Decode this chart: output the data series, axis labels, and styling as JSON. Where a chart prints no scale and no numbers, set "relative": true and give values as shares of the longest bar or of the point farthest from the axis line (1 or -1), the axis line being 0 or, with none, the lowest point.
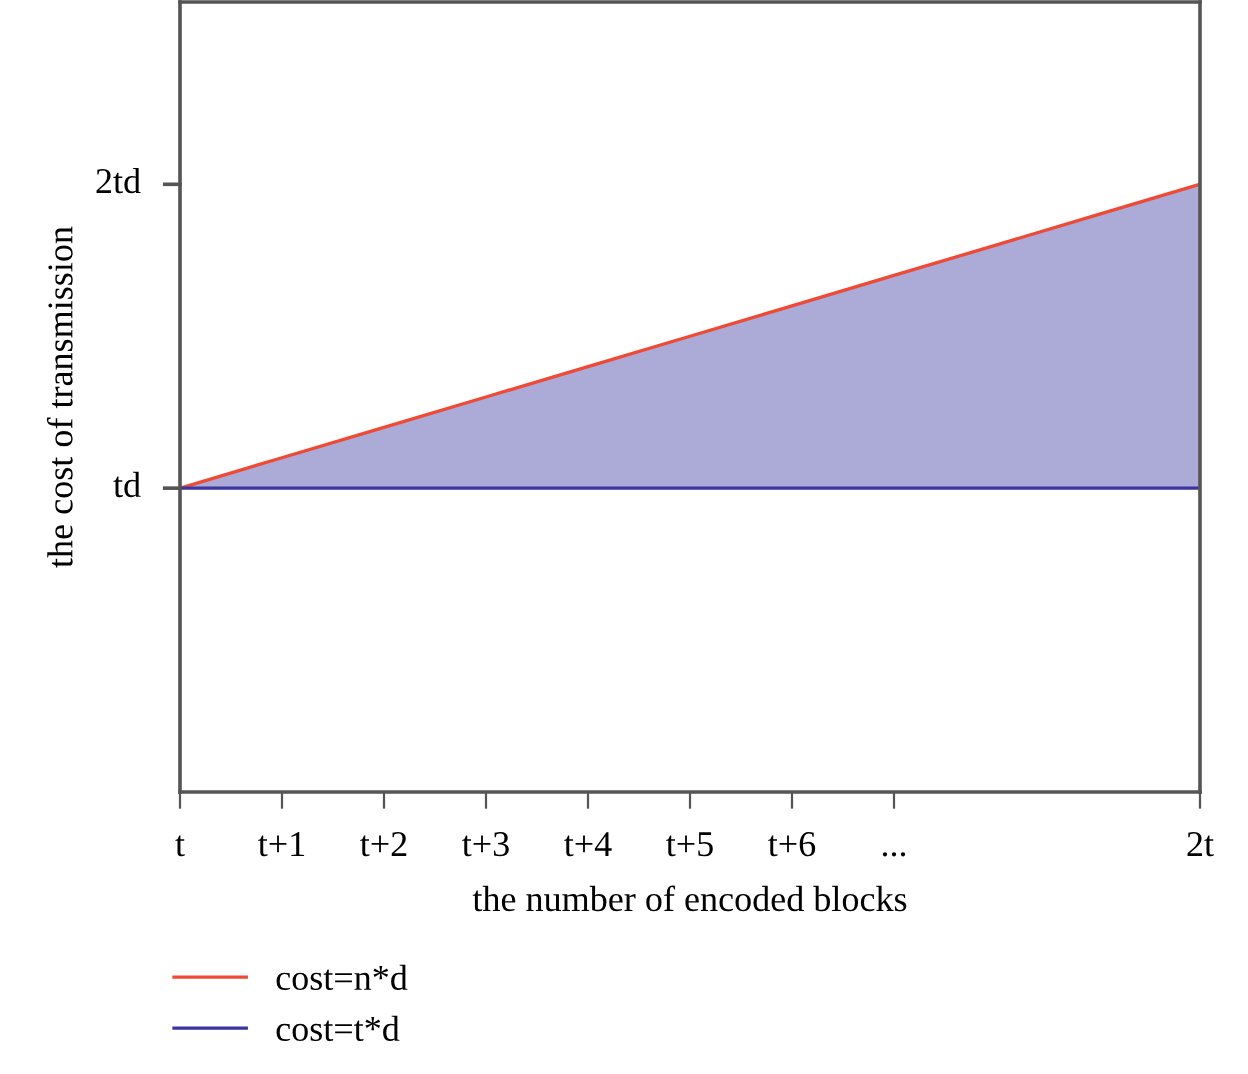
{
  "chart_data": {
    "type": "line",
    "xlabel": "the number of encoded blocks",
    "ylabel": "the cost of transmission",
    "relative": true,
    "categories": [
      "t",
      "t+1",
      "t+2",
      "t+3",
      "t+4",
      "t+5",
      "t+6",
      "...",
      null,
      null,
      "2t"
    ],
    "annotations": [
      "td",
      "2td"
    ],
    "series": [
      {
        "name": "cost=n*d",
        "color": "#ee4a35",
        "values": [
          0.5,
          0.55,
          0.6,
          0.65,
          0.7,
          0.75,
          0.8,
          0.85,
          0.9,
          0.95,
          1
        ]
      },
      {
        "name": "cost=t*d",
        "color": "#3a35a0",
        "values": [
          0.5,
          0.5,
          0.5,
          0.5,
          0.5,
          0.5,
          0.5,
          0.5,
          0.5,
          0.5,
          0.5
        ],
        "lower": [
          0.5,
          0.5,
          0.5,
          0.5,
          0.5,
          0.5,
          0.5,
          0.5,
          0.5,
          0.5,
          0.5
        ],
        "upper": [
          0.5,
          0.55,
          0.6,
          0.65,
          0.7,
          0.75,
          0.8,
          0.85,
          0.9,
          0.95,
          1
        ]
      }
    ],
    "grid": false,
    "legend": "bottom left"
  }
}
